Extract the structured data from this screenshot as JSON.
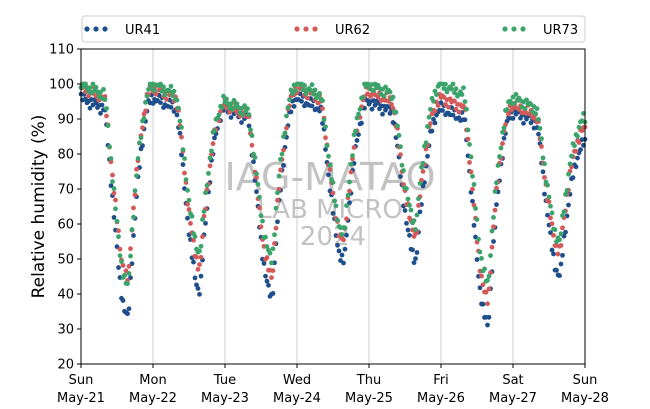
{
  "chart_data": {
    "type": "scatter",
    "ylabel": "Relative humidity (%)",
    "ylim": [
      20,
      110
    ],
    "yticks": [
      20,
      30,
      40,
      50,
      60,
      70,
      80,
      90,
      100,
      110
    ],
    "xlim": [
      "2024-05-21",
      "2024-05-28"
    ],
    "xticks": [
      {
        "date": "2024-05-21",
        "day": "Sun",
        "date_label": "May-21"
      },
      {
        "date": "2024-05-22",
        "day": "Mon",
        "date_label": "May-22"
      },
      {
        "date": "2024-05-23",
        "day": "Tue",
        "date_label": "May-23"
      },
      {
        "date": "2024-05-24",
        "day": "Wed",
        "date_label": "May-24"
      },
      {
        "date": "2024-05-25",
        "day": "Thu",
        "date_label": "May-25"
      },
      {
        "date": "2024-05-26",
        "day": "Fri",
        "date_label": "May-26"
      },
      {
        "date": "2024-05-27",
        "day": "Sat",
        "date_label": "May-27"
      },
      {
        "date": "2024-05-28",
        "day": "Sun",
        "date_label": "May-28"
      }
    ],
    "grid": "vertical",
    "legend_position": "top",
    "watermark": [
      "IAG-MATAO",
      "LAB MICRO",
      "2024"
    ],
    "series": [
      {
        "name": "UR41",
        "color": "#1f4e8c",
        "daily": [
          {
            "max": 96,
            "min": 33
          },
          {
            "max": 96,
            "min": 41
          },
          {
            "max": 93,
            "min": 39
          },
          {
            "max": 96,
            "min": 49
          },
          {
            "max": 95,
            "min": 50
          },
          {
            "max": 93,
            "min": 31
          },
          {
            "max": 92,
            "min": 45
          }
        ],
        "end": 83
      },
      {
        "name": "UR62",
        "color": "#d45a5a",
        "daily": [
          {
            "max": 99,
            "min": 44
          },
          {
            "max": 99,
            "min": 48
          },
          {
            "max": 94,
            "min": 45
          },
          {
            "max": 99,
            "min": 55
          },
          {
            "max": 98,
            "min": 57
          },
          {
            "max": 96,
            "min": 38
          },
          {
            "max": 94,
            "min": 52
          }
        ],
        "end": 87
      },
      {
        "name": "UR73",
        "color": "#3aa46a",
        "daily": [
          {
            "max": 100,
            "min": 42
          },
          {
            "max": 100,
            "min": 52
          },
          {
            "max": 95,
            "min": 50
          },
          {
            "max": 100,
            "min": 57
          },
          {
            "max": 100,
            "min": 60
          },
          {
            "max": 100,
            "min": 43
          },
          {
            "max": 96,
            "min": 55
          }
        ],
        "end": 90
      }
    ]
  }
}
